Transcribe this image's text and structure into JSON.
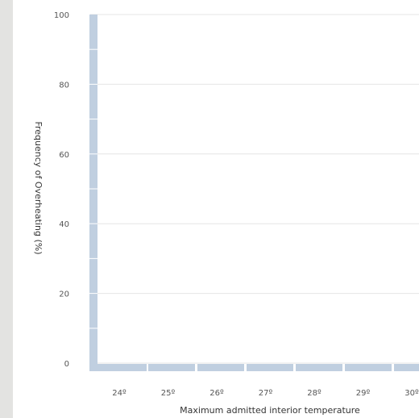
{
  "chart_data": {
    "type": "bar",
    "title": "",
    "xlabel": "Maximum admitted interior temperature",
    "ylabel": "Frequency of Overheating (%)",
    "categories": [
      "24º",
      "25º",
      "26º",
      "27º",
      "28º",
      "29º",
      "30º"
    ],
    "values": [
      0,
      0,
      0,
      0,
      0,
      0,
      0
    ],
    "ylim": [
      0,
      100
    ],
    "yticks": [
      0,
      20,
      40,
      60,
      80,
      100
    ],
    "grid": true,
    "colors": {
      "axis": "#c0cfe0",
      "grid": "#e6e6e6",
      "tick_text": "#555555",
      "background": "#ffffff"
    }
  }
}
